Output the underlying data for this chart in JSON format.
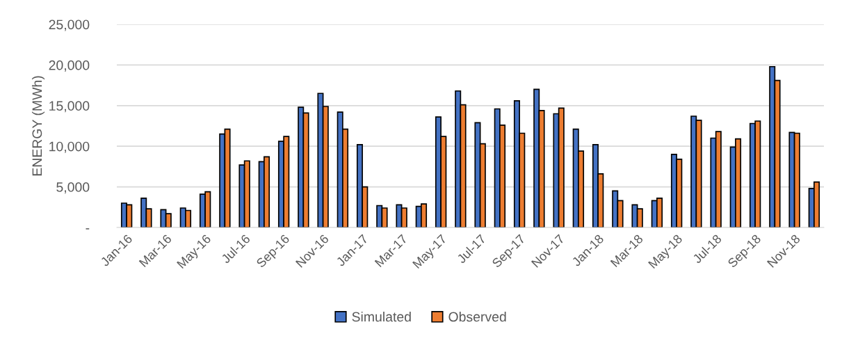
{
  "chart_data": {
    "type": "bar",
    "ylabel": "ENERGY (MWh)",
    "categories": [
      "Jan-16",
      null,
      "Mar-16",
      null,
      "May-16",
      null,
      "Jul-16",
      null,
      "Sep-16",
      null,
      "Nov-16",
      null,
      "Jan-17",
      null,
      "Mar-17",
      null,
      "May-17",
      null,
      "Jul-17",
      null,
      "Sep-17",
      null,
      "Nov-17",
      null,
      "Jan-18",
      null,
      "Mar-18",
      null,
      "May-18",
      null,
      "Jul-18",
      null,
      "Sep-18",
      null,
      "Nov-18",
      null
    ],
    "series": [
      {
        "name": "Simulated",
        "color": "#4472c4",
        "values": [
          3000,
          3600,
          2200,
          2400,
          4100,
          11500,
          7700,
          8100,
          10600,
          14800,
          16500,
          14200,
          10200,
          2700,
          2800,
          2600,
          13600,
          16800,
          12900,
          14600,
          15600,
          17000,
          14000,
          12100,
          10200,
          4500,
          2800,
          3300,
          9000,
          13700,
          11000,
          9900,
          12800,
          19800,
          11700,
          4800
        ]
      },
      {
        "name": "Observed",
        "color": "#ed7d31",
        "values": [
          2800,
          2300,
          1700,
          2100,
          4400,
          12100,
          8200,
          8700,
          11200,
          14100,
          14900,
          12100,
          5000,
          2400,
          2400,
          2900,
          11200,
          15100,
          10300,
          12600,
          11600,
          14400,
          14700,
          9400,
          6600,
          3300,
          2300,
          3600,
          8400,
          13200,
          11800,
          10900,
          13100,
          18100,
          11600,
          5600
        ]
      }
    ],
    "ylim": [
      0,
      25000
    ],
    "yticks": [
      {
        "value": 0,
        "label": "-"
      },
      {
        "value": 5000,
        "label": "5,000"
      },
      {
        "value": 10000,
        "label": "10,000"
      },
      {
        "value": 15000,
        "label": "15,000"
      },
      {
        "value": 20000,
        "label": "20,000"
      },
      {
        "value": 25000,
        "label": "25,000"
      }
    ],
    "grid": "y",
    "legend": "bottom"
  }
}
